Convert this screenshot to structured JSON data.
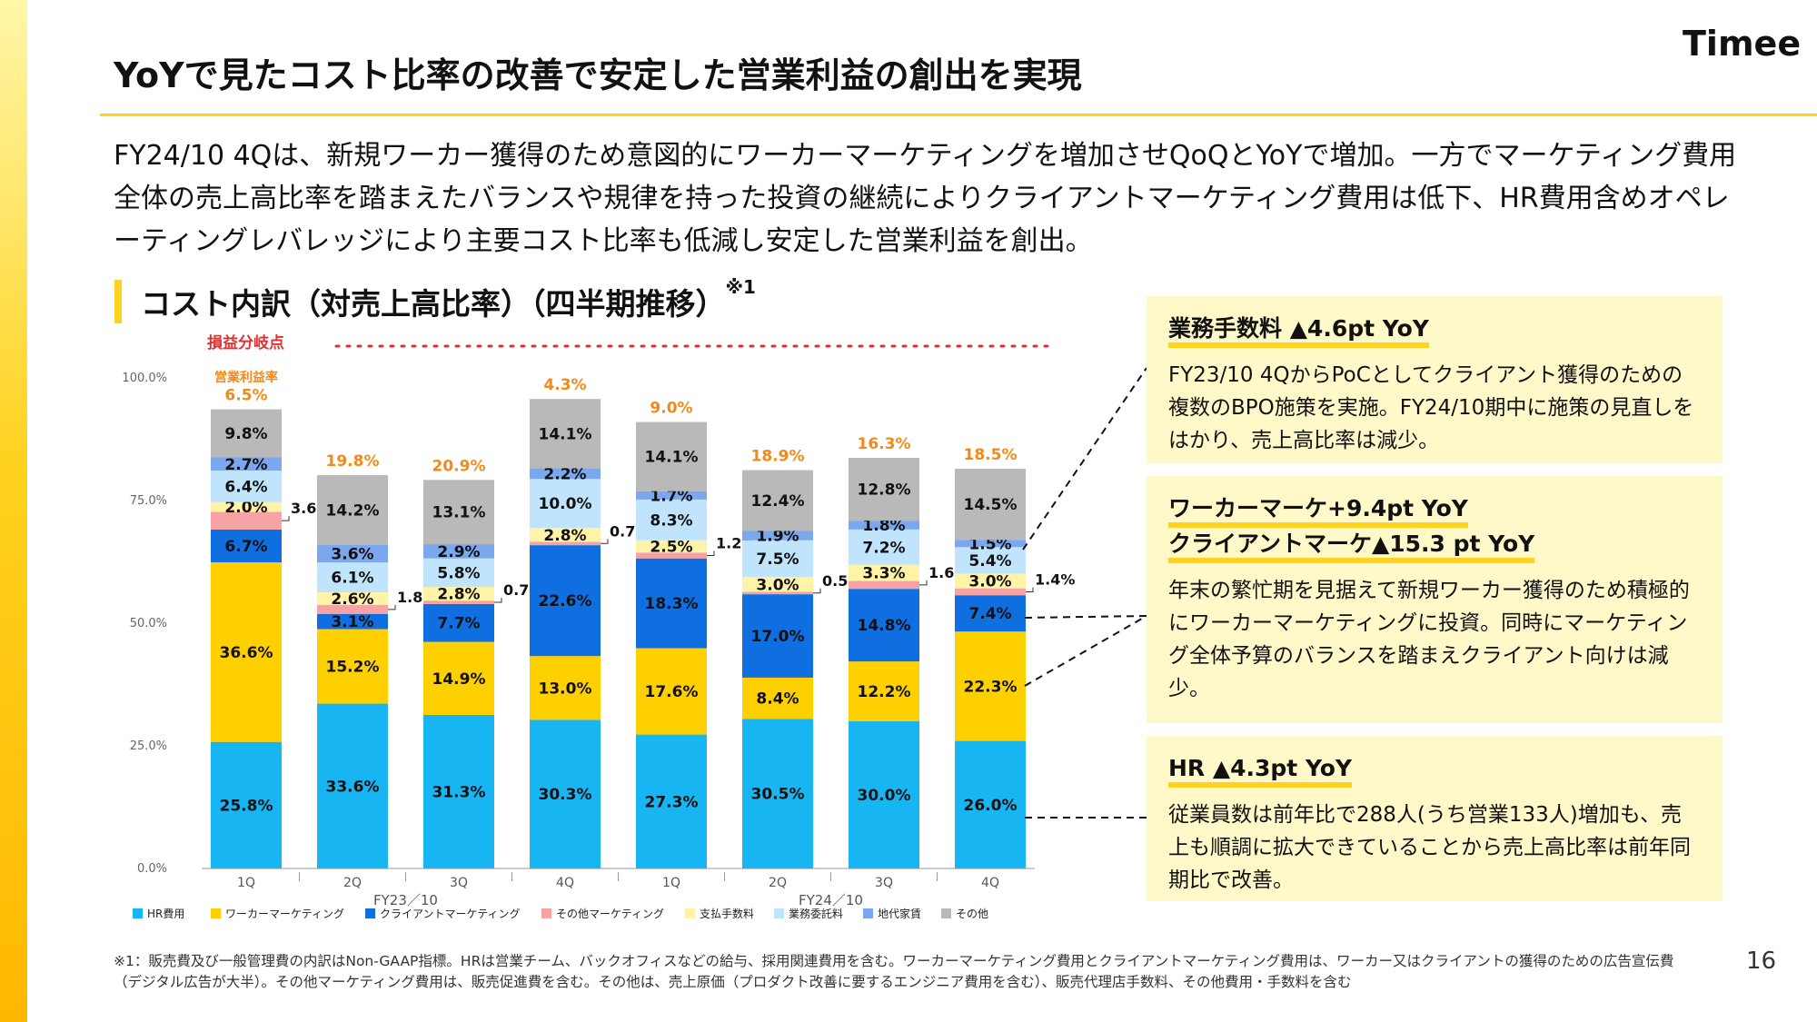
{
  "header": {
    "title": "YoYで見たコスト比率の改善で安定した営業利益の創出を実現",
    "logo": "Timee"
  },
  "lead": "FY24/10 4Qは、新規ワーカー獲得のため意図的にワーカーマーケティングを増加させQoQとYoYで増加。一方でマーケティング費用全体の売上高比率を踏まえたバランスや規律を持った投資の継続によりクライアントマーケティング費用は低下、HR費用含めオペレーティングレバレッジにより主要コスト比率も低減し安定した営業利益を創出。",
  "section": {
    "title": "コスト内訳（対売上高比率）（四半期推移）",
    "note_mark": "※1"
  },
  "chart_data": {
    "type": "bar",
    "stacked": true,
    "title": "コスト内訳（対売上高比率）（四半期推移）",
    "ylim": [
      0,
      100
    ],
    "yticks": [
      "0.0%",
      "25.0%",
      "50.0%",
      "75.0%",
      "100.0%"
    ],
    "categories": [
      "1Q",
      "2Q",
      "3Q",
      "4Q",
      "1Q",
      "2Q",
      "3Q",
      "4Q"
    ],
    "fiscal_groups": [
      "FY23／10",
      "FY24／10"
    ],
    "breakeven_label": "損益分岐点",
    "margin_label": "営業利益率",
    "operating_margin": [
      "6.5%",
      "19.8%",
      "20.9%",
      "4.3%",
      "9.0%",
      "18.9%",
      "16.3%",
      "18.5%"
    ],
    "series": [
      {
        "name": "HR費用",
        "color": "#17b6f2",
        "values": [
          25.8,
          33.6,
          31.3,
          30.3,
          27.3,
          30.5,
          30.0,
          26.0
        ],
        "labels": [
          "25.8%",
          "33.6%",
          "31.3%",
          "30.3%",
          "27.3%",
          "30.5%",
          "30.0%",
          "26.0%"
        ]
      },
      {
        "name": "ワーカーマーケティング",
        "color": "#ffd000",
        "values": [
          36.6,
          15.2,
          14.9,
          13.0,
          17.6,
          8.4,
          12.2,
          22.3
        ],
        "labels": [
          "36.6%",
          "15.2%",
          "14.9%",
          "13.0%",
          "17.6%",
          "8.4%",
          "12.2%",
          "22.3%"
        ]
      },
      {
        "name": "クライアントマーケティング",
        "color": "#0f6fe0",
        "values": [
          6.7,
          3.1,
          7.7,
          22.6,
          18.3,
          17.0,
          14.8,
          7.4
        ],
        "labels": [
          "6.7%",
          "3.1%",
          "7.7%",
          "22.6%",
          "18.3%",
          "17.0%",
          "14.8%",
          "7.4%"
        ]
      },
      {
        "name": "その他マーケティング",
        "color": "#f7a3a3",
        "values": [
          3.6,
          1.8,
          0.7,
          0.7,
          1.2,
          0.5,
          1.6,
          1.4
        ],
        "labels": [
          "3.6%",
          "1.8%",
          "0.7%",
          "0.7%",
          "1.2%",
          "0.5%",
          "1.6%",
          "1.4%"
        ]
      },
      {
        "name": "支払手数料",
        "color": "#fff3a8",
        "values": [
          2.0,
          2.6,
          2.8,
          2.8,
          2.5,
          3.0,
          3.3,
          3.0
        ],
        "labels": [
          "2.0%",
          "2.6%",
          "2.8%",
          "2.8%",
          "2.5%",
          "3.0%",
          "3.3%",
          "3.0%"
        ]
      },
      {
        "name": "業務委託料",
        "color": "#bfe4fb",
        "values": [
          6.4,
          6.1,
          5.8,
          10.0,
          8.3,
          7.5,
          7.2,
          5.4
        ],
        "labels": [
          "6.4%",
          "6.1%",
          "5.8%",
          "10.0%",
          "8.3%",
          "7.5%",
          "7.2%",
          "5.4%"
        ]
      },
      {
        "name": "地代家賃",
        "color": "#7aa7ee",
        "values": [
          2.7,
          3.6,
          2.9,
          2.2,
          1.7,
          1.9,
          1.8,
          1.5
        ],
        "labels": [
          "2.7%",
          "3.6%",
          "2.9%",
          "2.2%",
          "1.7%",
          "1.9%",
          "1.8%",
          "1.5%"
        ]
      },
      {
        "name": "その他",
        "color": "#b9b9b9",
        "values": [
          9.8,
          14.2,
          13.1,
          14.1,
          14.1,
          12.4,
          12.8,
          14.5
        ],
        "labels": [
          "9.8%",
          "14.2%",
          "13.1%",
          "14.1%",
          "14.1%",
          "12.4%",
          "12.8%",
          "14.5%"
        ]
      }
    ]
  },
  "panels": [
    {
      "head": [
        "業務手数料 ▲4.6pt YoY"
      ],
      "body": "FY23/10 4QからPoCとしてクライアント獲得のための複数のBPO施策を実施。FY24/10期中に施策の見直しをはかり、売上高比率は減少。"
    },
    {
      "head": [
        "ワーカーマーケ+9.4pt YoY",
        "クライアントマーケ▲15.3 pt YoY"
      ],
      "body": "年末の繁忙期を見据えて新規ワーカー獲得のため積極的にワーカーマーケティングに投資。同時にマーケティング全体予算のバランスを踏まえクライアント向けは減少。"
    },
    {
      "head": [
        "HR ▲4.3pt YoY"
      ],
      "body": "従業員数は前年比で288人(うち営業133人)増加も、売上も順調に拡大できていることから売上高比率は前年同期比で改善。"
    }
  ],
  "footnote": "※1：販売費及び一般管理費の内訳はNon-GAAP指標。HRは営業チーム、バックオフィスなどの給与、採用関連費用を含む。ワーカーマーケティング費用とクライアントマーケティング費用は、ワーカー又はクライアントの獲得のための広告宣伝費（デジタル広告が大半）。その他マーケティング費用は、販売促進費を含む。その他は、売上原価（プロダクト改善に要するエンジニア費用を含む）、販売代理店手数料、その他費用・手数料を含む",
  "page_number": "16"
}
